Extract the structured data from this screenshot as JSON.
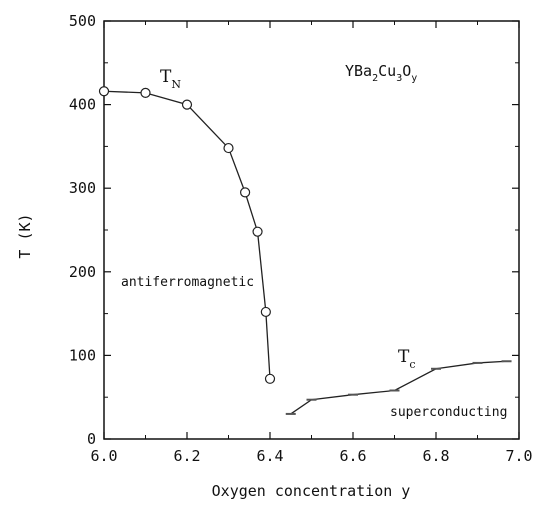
{
  "chart_data": {
    "type": "line",
    "title": "",
    "xlabel": "Oxygen concentration y",
    "ylabel": "T (K)",
    "xlim": [
      6.0,
      7.0
    ],
    "ylim": [
      0,
      500
    ],
    "x_ticks": [
      6.0,
      6.2,
      6.4,
      6.6,
      6.8,
      7.0
    ],
    "x_tick_labels": [
      "6.0",
      "6.2",
      "6.4",
      "6.6",
      "6.8",
      "7.0"
    ],
    "y_ticks": [
      0,
      100,
      200,
      300,
      400,
      500
    ],
    "y_tick_labels": [
      "0",
      "100",
      "200",
      "300",
      "400",
      "500"
    ],
    "grid": false,
    "legend": "none",
    "series": [
      {
        "name": "T_N",
        "marker": "circle",
        "points": [
          {
            "x": 6.0,
            "y": 416
          },
          {
            "x": 6.1,
            "y": 414
          },
          {
            "x": 6.2,
            "y": 400
          },
          {
            "x": 6.3,
            "y": 348
          },
          {
            "x": 6.34,
            "y": 295
          },
          {
            "x": 6.37,
            "y": 248
          },
          {
            "x": 6.39,
            "y": 152
          },
          {
            "x": 6.4,
            "y": 72
          }
        ]
      },
      {
        "name": "T_c",
        "marker": "dash",
        "points": [
          {
            "x": 6.45,
            "y": 30
          },
          {
            "x": 6.5,
            "y": 47
          },
          {
            "x": 6.6,
            "y": 53
          },
          {
            "x": 6.7,
            "y": 58
          },
          {
            "x": 6.8,
            "y": 84
          },
          {
            "x": 6.9,
            "y": 91
          },
          {
            "x": 6.97,
            "y": 93
          }
        ]
      }
    ],
    "annotations": {
      "compound": {
        "base": "YBa",
        "s1": "2",
        "mid1": "Cu",
        "s2": "3",
        "mid2": "O",
        "s3": "y"
      },
      "tn_label": {
        "main": "T",
        "sub": "N"
      },
      "tc_label": {
        "main": "T",
        "sub": "c"
      },
      "region_low": "antiferromagnetic",
      "region_high": "superconducting"
    }
  }
}
